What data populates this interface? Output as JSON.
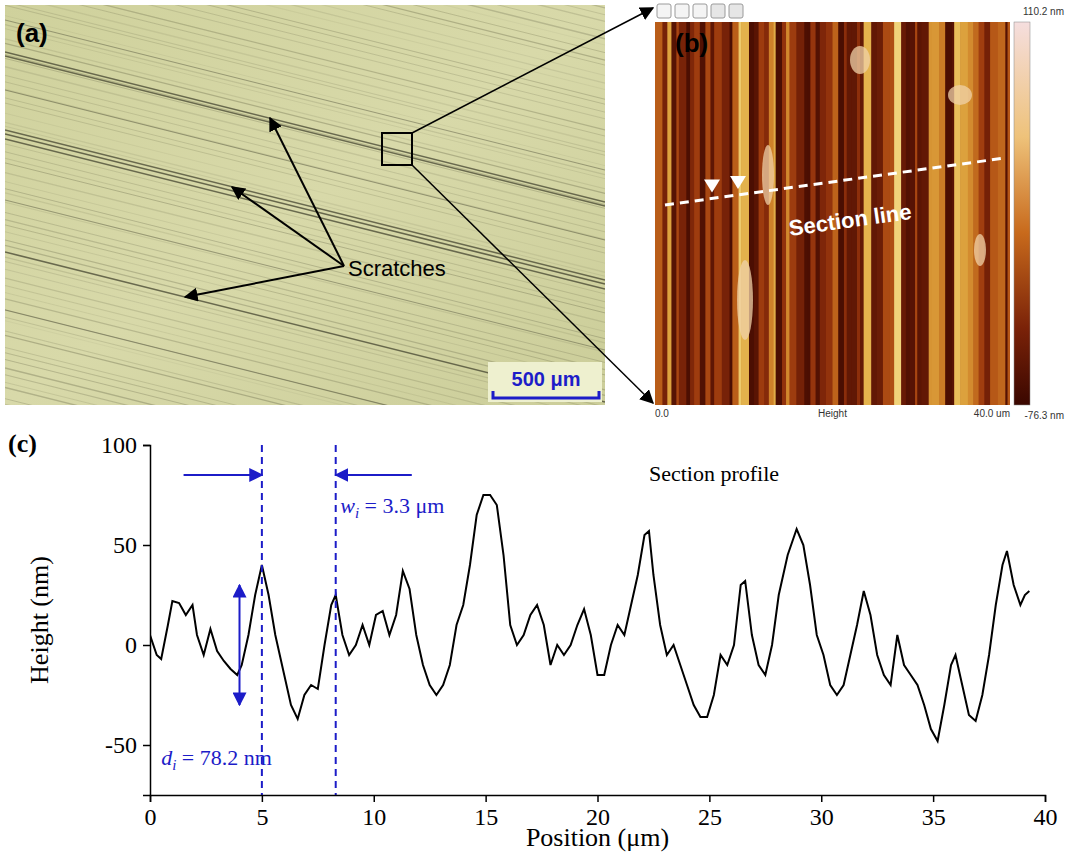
{
  "micrograph": {
    "label": "(a)",
    "annotation": "Scratches",
    "scale_bar": "500 μm"
  },
  "afm_image": {
    "label": "(b)",
    "section_line": "Section line",
    "colorbar": {
      "max": "110.2 nm",
      "min": "-76.3 nm"
    },
    "x_axis": {
      "start": "0.0",
      "title": "Height",
      "end": "40.0 um"
    }
  },
  "chart_data": {
    "type": "line",
    "panel_label": "(c)",
    "x_label": "Position (μm)",
    "y_label": "Height (nm)",
    "color": "#000000",
    "x": [
      0,
      0.3,
      0.5,
      0.8,
      1.0,
      1.3,
      1.6,
      1.9,
      2.1,
      2.4,
      2.7,
      3.0,
      3.3,
      3.6,
      3.9,
      4.1,
      4.4,
      4.7,
      5.0,
      5.3,
      5.6,
      6.0,
      6.3,
      6.6,
      6.9,
      7.2,
      7.5,
      7.8,
      8.1,
      8.3,
      8.6,
      8.9,
      9.2,
      9.5,
      9.8,
      10.1,
      10.4,
      10.7,
      11.0,
      11.3,
      11.6,
      11.9,
      12.2,
      12.5,
      12.8,
      13.1,
      13.4,
      13.7,
      14.0,
      14.3,
      14.6,
      14.9,
      15.2,
      15.5,
      15.8,
      16.1,
      16.4,
      16.7,
      17.0,
      17.3,
      17.6,
      17.9,
      18.2,
      18.5,
      18.8,
      19.1,
      19.4,
      19.7,
      20.0,
      20.3,
      20.6,
      20.9,
      21.2,
      21.5,
      21.8,
      22.1,
      22.3,
      22.5,
      22.8,
      23.1,
      23.4,
      23.7,
      24.0,
      24.3,
      24.6,
      24.9,
      25.2,
      25.5,
      25.8,
      26.1,
      26.4,
      26.6,
      26.9,
      27.2,
      27.5,
      27.8,
      28.1,
      28.5,
      28.9,
      29.2,
      29.5,
      29.8,
      30.1,
      30.4,
      30.7,
      31.0,
      31.3,
      31.6,
      31.9,
      32.2,
      32.5,
      32.8,
      33.1,
      33.4,
      33.7,
      34.0,
      34.3,
      34.6,
      34.9,
      35.2,
      35.5,
      35.8,
      36.0,
      36.3,
      36.6,
      36.9,
      37.2,
      37.5,
      37.8,
      38.1,
      38.3,
      38.6,
      38.9,
      39.1,
      39.3
    ],
    "values": [
      5,
      -5,
      -7,
      10,
      22,
      21,
      15,
      20,
      5,
      -5,
      8,
      -3,
      -8,
      -12,
      -15,
      -10,
      5,
      25,
      40,
      25,
      5,
      -15,
      -30,
      -37,
      -25,
      -20,
      -22,
      0,
      20,
      25,
      5,
      -5,
      0,
      10,
      0,
      15,
      17,
      5,
      15,
      37,
      28,
      5,
      -10,
      -20,
      -25,
      -20,
      -10,
      10,
      20,
      40,
      65,
      75,
      75,
      70,
      45,
      10,
      0,
      5,
      15,
      20,
      10,
      -10,
      0,
      -5,
      0,
      10,
      18,
      5,
      -15,
      -15,
      0,
      10,
      5,
      20,
      35,
      55,
      57,
      35,
      10,
      -5,
      0,
      -10,
      -20,
      -30,
      -36,
      -36,
      -25,
      -5,
      -10,
      0,
      30,
      32,
      5,
      -10,
      -15,
      0,
      25,
      45,
      58,
      50,
      30,
      5,
      -5,
      -20,
      -25,
      -20,
      -5,
      10,
      27,
      15,
      -5,
      -15,
      -20,
      5,
      -10,
      -15,
      -20,
      -30,
      -42,
      -48,
      -30,
      -10,
      -5,
      -20,
      -35,
      -38,
      -25,
      -5,
      20,
      40,
      47,
      30,
      20,
      25,
      27
    ],
    "xlim": [
      0,
      40
    ],
    "xticks": [
      0,
      5,
      10,
      15,
      20,
      25,
      30,
      35,
      40
    ],
    "ylim": [
      -75,
      100
    ],
    "yticks": [
      -50,
      0,
      50,
      100
    ],
    "reference_lines": [
      5,
      8.3
    ],
    "width_arrow": {
      "x": [
        1.5,
        11.7
      ],
      "y": 85
    },
    "depth_arrow": {
      "x": 4.0,
      "y": [
        -30,
        30
      ]
    },
    "annotations": [
      {
        "text": "Section profile",
        "x": 22.3,
        "y": 82
      },
      {
        "symbol": "w",
        "subscript": "i",
        "text": " = 3.3 μm",
        "x": 8.5,
        "y": 66
      },
      {
        "symbol": "d",
        "subscript": "i",
        "text": " = 78.2 nm",
        "x": 0.5,
        "y": -60
      }
    ]
  }
}
